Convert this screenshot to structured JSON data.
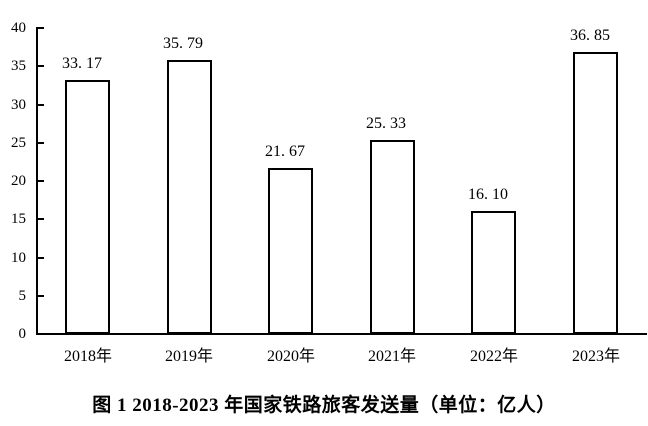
{
  "figure": {
    "caption": "图 1 2018-2023 年国家铁路旅客发送量（单位：亿人）"
  },
  "chart_data": {
    "type": "bar",
    "title": "图 1 2018-2023 年国家铁路旅客发送量（单位：亿人）",
    "unit": "亿人",
    "categories": [
      "2018年",
      "2019年",
      "2020年",
      "2021年",
      "2022年",
      "2023年"
    ],
    "values": [
      33.17,
      35.79,
      21.67,
      25.33,
      16.1,
      36.85
    ],
    "value_labels": [
      "33. 17",
      "35. 79",
      "21. 67",
      "25. 33",
      "16. 10",
      "36. 85"
    ],
    "xlabel": "",
    "ylabel": "",
    "ylim": [
      0,
      40
    ],
    "yticks": [
      0,
      5,
      10,
      15,
      20,
      25,
      30,
      35,
      40
    ],
    "grid": false,
    "legend": null,
    "layout_hints": {
      "bar_style": "outlined-white",
      "tick_direction": "in",
      "value_labels_position": "above-bars"
    },
    "colors": {
      "background": "#ffffff",
      "axis": "#000000",
      "bar_fill": "#ffffff",
      "bar_border": "#000000",
      "text": "#000000"
    }
  }
}
